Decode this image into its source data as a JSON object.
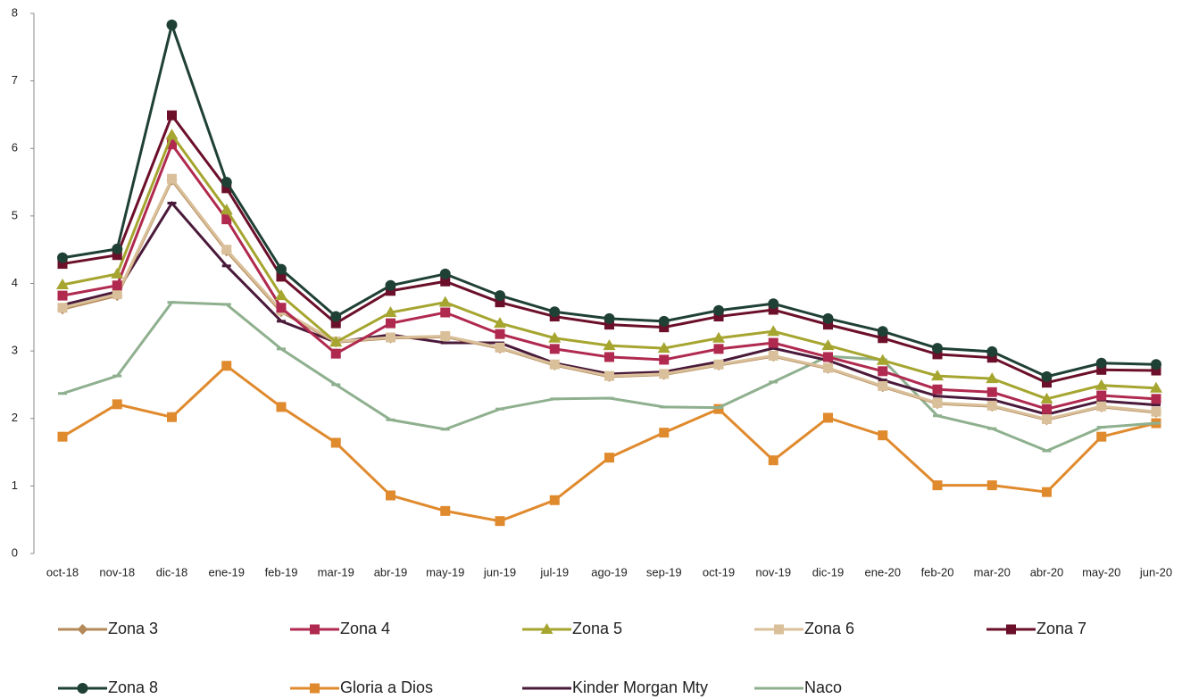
{
  "chart_data": {
    "type": "line",
    "categories": [
      "oct-18",
      "nov-18",
      "dic-18",
      "ene-19",
      "feb-19",
      "mar-19",
      "abr-19",
      "may-19",
      "jun-19",
      "jul-19",
      "ago-19",
      "sep-19",
      "oct-19",
      "nov-19",
      "dic-19",
      "ene-20",
      "feb-20",
      "mar-20",
      "abr-20",
      "may-20",
      "jun-20"
    ],
    "ylim": [
      0,
      8
    ],
    "yticks": [
      0,
      1,
      2,
      3,
      4,
      5,
      6,
      7,
      8
    ],
    "series": [
      {
        "name": "Zona 3",
        "color": "#b58a5a",
        "marker": "diamond",
        "values": [
          3.62,
          3.82,
          5.53,
          4.48,
          3.58,
          3.13,
          3.19,
          3.21,
          3.04,
          2.79,
          2.62,
          2.65,
          2.79,
          2.92,
          2.74,
          2.47,
          2.22,
          2.18,
          1.98,
          2.17,
          2.09
        ]
      },
      {
        "name": "Zona 4",
        "color": "#b0294f",
        "marker": "square",
        "values": [
          3.82,
          3.97,
          6.06,
          4.95,
          3.64,
          2.96,
          3.41,
          3.57,
          3.25,
          3.03,
          2.91,
          2.87,
          3.03,
          3.12,
          2.91,
          2.7,
          2.43,
          2.39,
          2.14,
          2.34,
          2.29
        ]
      },
      {
        "name": "Zona 5",
        "color": "#a5a530",
        "marker": "triangle",
        "values": [
          3.98,
          4.14,
          6.2,
          5.09,
          3.82,
          3.13,
          3.57,
          3.72,
          3.41,
          3.19,
          3.08,
          3.04,
          3.19,
          3.29,
          3.08,
          2.86,
          2.63,
          2.59,
          2.29,
          2.49,
          2.45
        ]
      },
      {
        "name": "Zona 6",
        "color": "#d9c09a",
        "marker": "square",
        "values": [
          3.64,
          3.84,
          5.55,
          4.5,
          3.6,
          3.14,
          3.2,
          3.22,
          3.05,
          2.8,
          2.63,
          2.66,
          2.8,
          2.93,
          2.75,
          2.48,
          2.23,
          2.19,
          1.99,
          2.18,
          2.1
        ]
      },
      {
        "name": "Zona 7",
        "color": "#6b0f2a",
        "marker": "square",
        "values": [
          4.29,
          4.42,
          6.49,
          5.41,
          4.1,
          3.41,
          3.89,
          4.03,
          3.72,
          3.51,
          3.39,
          3.35,
          3.51,
          3.61,
          3.39,
          3.19,
          2.95,
          2.9,
          2.53,
          2.72,
          2.71
        ]
      },
      {
        "name": "Zona 8",
        "color": "#1f4035",
        "marker": "circle",
        "values": [
          4.38,
          4.51,
          7.83,
          5.5,
          4.21,
          3.51,
          3.97,
          4.14,
          3.82,
          3.58,
          3.48,
          3.44,
          3.6,
          3.7,
          3.48,
          3.29,
          3.04,
          2.99,
          2.62,
          2.82,
          2.8
        ]
      },
      {
        "name": "Gloria a Dios",
        "color": "#e08a2e",
        "marker": "square",
        "values": [
          1.73,
          2.21,
          2.02,
          2.78,
          2.17,
          1.64,
          0.86,
          0.63,
          0.48,
          0.79,
          1.42,
          1.79,
          2.14,
          1.38,
          2.01,
          1.75,
          1.01,
          1.01,
          0.91,
          1.73,
          1.93
        ]
      },
      {
        "name": "Kinder Morgan Mty",
        "color": "#4a1a3a",
        "marker": "dash",
        "values": [
          3.68,
          3.88,
          5.19,
          4.26,
          3.44,
          3.13,
          3.24,
          3.12,
          3.12,
          2.82,
          2.66,
          2.69,
          2.84,
          3.04,
          2.86,
          2.57,
          2.33,
          2.28,
          2.06,
          2.26,
          2.2
        ]
      },
      {
        "name": "Naco",
        "color": "#8fb08f",
        "marker": "dash",
        "values": [
          2.37,
          2.63,
          3.72,
          3.69,
          3.03,
          2.5,
          1.98,
          1.84,
          2.14,
          2.29,
          2.3,
          2.17,
          2.16,
          2.54,
          2.92,
          2.87,
          2.04,
          1.85,
          1.52,
          1.87,
          1.93
        ]
      }
    ]
  }
}
